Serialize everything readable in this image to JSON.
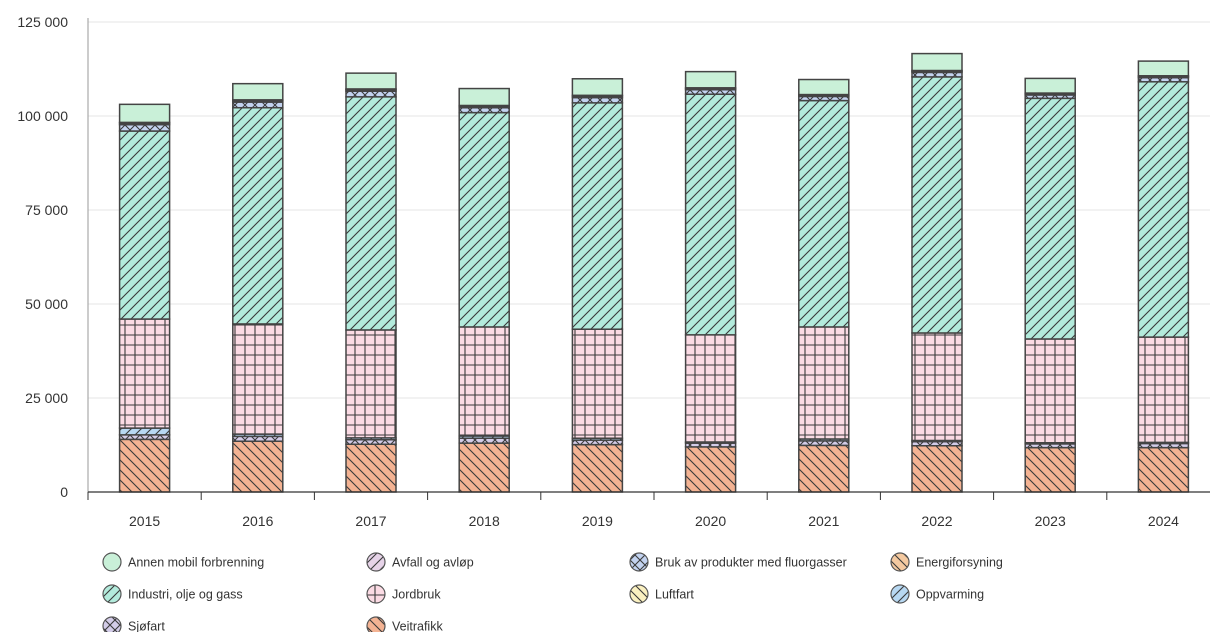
{
  "chart_data": {
    "type": "bar",
    "stacked": true,
    "title": "",
    "xlabel": "",
    "ylabel": "",
    "ylim": [
      0,
      125000
    ],
    "y_ticks": [
      {
        "value": 0,
        "label": "0"
      },
      {
        "value": 25000,
        "label": "25 000"
      },
      {
        "value": 50000,
        "label": "50 000"
      },
      {
        "value": 75000,
        "label": "75 000"
      },
      {
        "value": 100000,
        "label": "100 000"
      },
      {
        "value": 125000,
        "label": "125 000"
      }
    ],
    "grid": true,
    "legend_position": "bottom",
    "categories": [
      "2015",
      "2016",
      "2017",
      "2018",
      "2019",
      "2020",
      "2021",
      "2022",
      "2023",
      "2024"
    ],
    "series": [
      {
        "name": "Veitrafikk",
        "color": "#f4b393",
        "pattern": "diag-back",
        "values": [
          14000,
          13500,
          12700,
          13000,
          12600,
          12000,
          12400,
          12300,
          11800,
          11800
        ]
      },
      {
        "name": "Sjøfart",
        "color": "#d3cce8",
        "pattern": "diamond",
        "values": [
          1200,
          1300,
          1200,
          1300,
          1200,
          1000,
          1200,
          1100,
          1000,
          1100
        ]
      },
      {
        "name": "Oppvarming",
        "color": "#b7d8f2",
        "pattern": "diag-fwd",
        "values": [
          1800,
          600,
          500,
          600,
          500,
          300,
          500,
          300,
          300,
          300
        ]
      },
      {
        "name": "Jordbruk",
        "color": "#fbdbe4",
        "pattern": "grid",
        "values": [
          29000,
          29300,
          28700,
          29000,
          29000,
          28500,
          29800,
          28600,
          27600,
          28000
        ]
      },
      {
        "name": "Industri, olje og gass",
        "color": "#b3ebdc",
        "pattern": "diag-fwd",
        "values": [
          50000,
          57500,
          62000,
          57000,
          60200,
          64000,
          60200,
          68100,
          64000,
          67900
        ]
      },
      {
        "name": "Bruk av produkter med fluorgasser",
        "color": "#c3d3f0",
        "pattern": "cross",
        "values": [
          1700,
          1500,
          1500,
          1300,
          1400,
          1200,
          1100,
          1200,
          900,
          1100
        ]
      },
      {
        "name": "Luftfart",
        "color": "#faf0c0",
        "pattern": "diag-back",
        "values": [
          400,
          400,
          400,
          400,
          400,
          300,
          300,
          300,
          300,
          300
        ]
      },
      {
        "name": "Avfall og avløp",
        "color": "#e6d3e8",
        "pattern": "diag-fwd",
        "values": [
          200,
          200,
          200,
          200,
          200,
          200,
          200,
          200,
          200,
          200
        ]
      },
      {
        "name": "Annen mobil forbrenning",
        "color": "#c9f0d8",
        "pattern": "none",
        "values": [
          4800,
          4300,
          4200,
          4500,
          4400,
          4300,
          4000,
          4500,
          3900,
          3900
        ]
      },
      {
        "name": "Energiforsyning",
        "color": "#f4c9a0",
        "pattern": "diag-back",
        "values": [
          0,
          0,
          0,
          0,
          0,
          0,
          0,
          0,
          0,
          0
        ]
      }
    ],
    "legend": [
      {
        "label": "Annen mobil forbrenning",
        "color": "#c9f0d8",
        "pattern": "none"
      },
      {
        "label": "Avfall og avløp",
        "color": "#e6d3e8",
        "pattern": "diag-fwd"
      },
      {
        "label": "Bruk av produkter med fluorgasser",
        "color": "#c3d3f0",
        "pattern": "cross"
      },
      {
        "label": "Energiforsyning",
        "color": "#f4c9a0",
        "pattern": "diag-back"
      },
      {
        "label": "Industri, olje og gass",
        "color": "#b3ebdc",
        "pattern": "diag-fwd"
      },
      {
        "label": "Jordbruk",
        "color": "#fbdbe4",
        "pattern": "plus"
      },
      {
        "label": "Luftfart",
        "color": "#faf0c0",
        "pattern": "diag-back"
      },
      {
        "label": "Oppvarming",
        "color": "#b7d8f2",
        "pattern": "diag-fwd"
      },
      {
        "label": "Sjøfart",
        "color": "#d3cce8",
        "pattern": "diamond"
      },
      {
        "label": "Veitrafikk",
        "color": "#f4b393",
        "pattern": "diag-back"
      }
    ]
  }
}
